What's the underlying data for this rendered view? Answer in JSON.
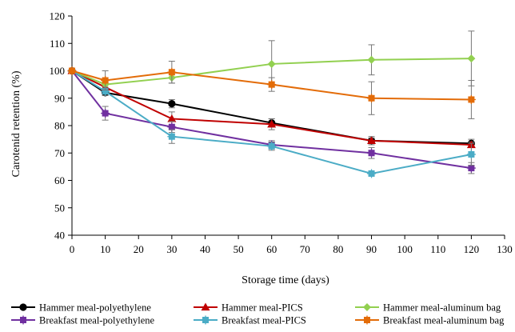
{
  "chart_data": {
    "type": "line",
    "xlabel": "Storage time (days)",
    "ylabel": "Carotenid retention (%)",
    "xlim": [
      0,
      130
    ],
    "ylim": [
      40,
      120
    ],
    "x_ticks": [
      0,
      10,
      20,
      30,
      40,
      50,
      60,
      70,
      80,
      90,
      100,
      110,
      120,
      130
    ],
    "y_ticks": [
      40,
      50,
      60,
      70,
      80,
      90,
      100,
      110,
      120
    ],
    "grid": false,
    "legend_position": "bottom",
    "x": [
      0,
      10,
      30,
      60,
      90,
      120
    ],
    "series": [
      {
        "name": "Hammer meal-polyethylene",
        "color": "#000000",
        "marker": "circle",
        "values": [
          100,
          92,
          88,
          81,
          74.5,
          73.5
        ],
        "errors": [
          0.5,
          1,
          1.5,
          1.5,
          1.5,
          1.5
        ]
      },
      {
        "name": "Hammer meal-PICS",
        "color": "#c00000",
        "marker": "triangle",
        "values": [
          100,
          94,
          82.5,
          80.5,
          74.5,
          73
        ],
        "errors": [
          0.5,
          1.5,
          2.5,
          2,
          1,
          1
        ]
      },
      {
        "name": "Hammer meal-aluminum bag",
        "color": "#92d050",
        "marker": "diamond",
        "values": [
          100,
          95,
          97.5,
          102.5,
          104,
          104.5
        ],
        "errors": [
          0.5,
          1.5,
          2,
          8.5,
          5.5,
          10
        ]
      },
      {
        "name": "Breakfast meal-polyethylene",
        "color": "#7030a0",
        "marker": "star",
        "values": [
          100,
          84.5,
          79.5,
          73,
          70,
          64.5
        ],
        "errors": [
          0.5,
          2.5,
          2,
          1.5,
          2,
          2
        ]
      },
      {
        "name": "Breakfast meal-PICS",
        "color": "#4bacc6",
        "marker": "star",
        "values": [
          100,
          92.5,
          76,
          72.5,
          62.5,
          69.5
        ],
        "errors": [
          0.5,
          1.5,
          2.5,
          1.5,
          0.5,
          4
        ]
      },
      {
        "name": "Breakfast meal-aluminum bag",
        "color": "#e36c09",
        "marker": "star",
        "values": [
          100,
          96.5,
          99.5,
          95,
          90,
          89.5
        ],
        "errors": [
          0.5,
          3.5,
          4,
          2.5,
          6,
          7
        ]
      }
    ]
  }
}
